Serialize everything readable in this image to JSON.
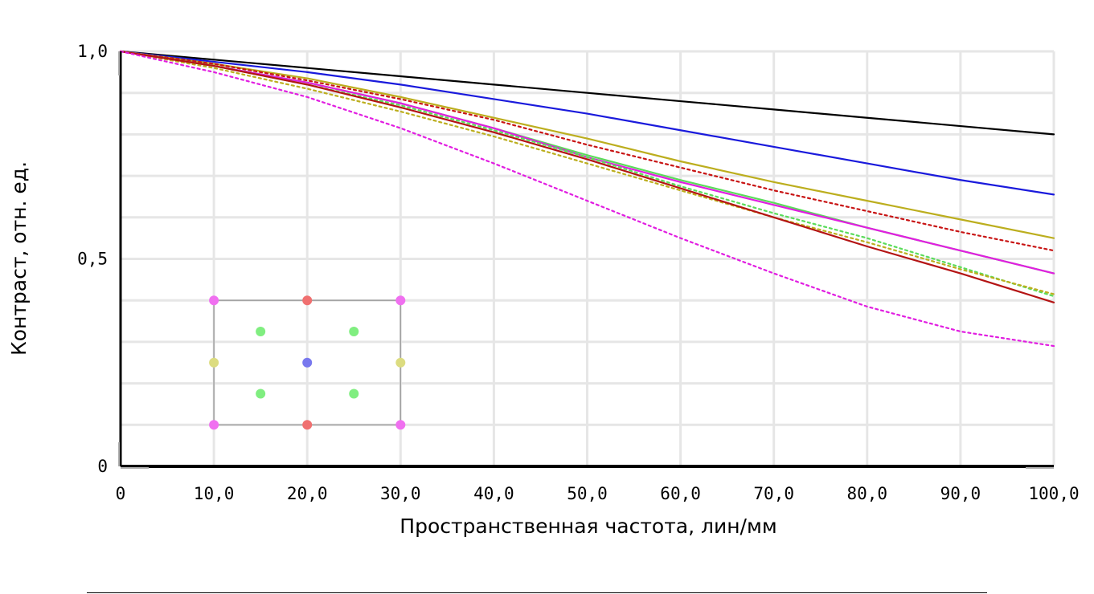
{
  "chart_data": {
    "type": "line",
    "xlabel": "Пространственная частота, лин/мм",
    "ylabel": "Контраст, отн. ед.",
    "xlim": [
      0,
      100
    ],
    "ylim": [
      0,
      1
    ],
    "x_tick_labels": [
      "0",
      "10,0",
      "20,0",
      "30,0",
      "40,0",
      "50,0",
      "60,0",
      "70,0",
      "80,0",
      "90,0",
      "100,0"
    ],
    "y_tick_labels": [
      {
        "value": 0,
        "label": "0"
      },
      {
        "value": 0.5,
        "label": "0,5"
      },
      {
        "value": 1,
        "label": "1,0"
      }
    ],
    "grid": true,
    "x": [
      0,
      10,
      20,
      30,
      40,
      50,
      60,
      70,
      80,
      90,
      100
    ],
    "series": [
      {
        "color": "#000000",
        "dashed": false,
        "values": [
          1.0,
          0.98,
          0.96,
          0.94,
          0.92,
          0.9,
          0.88,
          0.86,
          0.84,
          0.82,
          0.8
        ]
      },
      {
        "color": "#1a1adc",
        "dashed": false,
        "values": [
          1.0,
          0.975,
          0.95,
          0.92,
          0.885,
          0.85,
          0.81,
          0.77,
          0.73,
          0.69,
          0.655
        ]
      },
      {
        "color": "#bcae1e",
        "dashed": false,
        "values": [
          1.0,
          0.97,
          0.935,
          0.89,
          0.84,
          0.79,
          0.735,
          0.685,
          0.64,
          0.595,
          0.55
        ]
      },
      {
        "color": "#c81414",
        "dashed": true,
        "values": [
          1.0,
          0.97,
          0.93,
          0.885,
          0.835,
          0.775,
          0.72,
          0.665,
          0.615,
          0.565,
          0.52
        ]
      },
      {
        "color": "#5adc5a",
        "dashed": false,
        "values": [
          1.0,
          0.965,
          0.925,
          0.875,
          0.815,
          0.75,
          0.69,
          0.635,
          0.575,
          0.52,
          0.465
        ]
      },
      {
        "color": "#e11ee1",
        "dashed": false,
        "values": [
          1.0,
          0.965,
          0.925,
          0.875,
          0.815,
          0.745,
          0.685,
          0.63,
          0.575,
          0.52,
          0.465
        ]
      },
      {
        "color": "#5adc5a",
        "dashed": true,
        "values": [
          1.0,
          0.965,
          0.92,
          0.87,
          0.81,
          0.745,
          0.675,
          0.61,
          0.55,
          0.48,
          0.41
        ]
      },
      {
        "color": "#bcae1e",
        "dashed": true,
        "values": [
          1.0,
          0.96,
          0.91,
          0.855,
          0.795,
          0.73,
          0.665,
          0.6,
          0.54,
          0.475,
          0.415
        ]
      },
      {
        "color": "#b41414",
        "dashed": false,
        "values": [
          1.0,
          0.965,
          0.92,
          0.865,
          0.805,
          0.74,
          0.67,
          0.6,
          0.53,
          0.465,
          0.395
        ]
      },
      {
        "color": "#e11ee1",
        "dashed": true,
        "values": [
          1.0,
          0.95,
          0.89,
          0.815,
          0.73,
          0.64,
          0.55,
          0.465,
          0.385,
          0.325,
          0.29
        ]
      }
    ],
    "field_points_inset": [
      {
        "color": "#f070f0",
        "col": -1,
        "row": -1
      },
      {
        "color": "#f07070",
        "col": 0,
        "row": -1
      },
      {
        "color": "#f070f0",
        "col": 1,
        "row": -1
      },
      {
        "color": "#80ee80",
        "col": -0.5,
        "row": -0.5
      },
      {
        "color": "#80ee80",
        "col": 0.5,
        "row": -0.5
      },
      {
        "color": "#dcdc80",
        "col": -1,
        "row": 0
      },
      {
        "color": "#7878ee",
        "col": 0,
        "row": 0
      },
      {
        "color": "#dcdc80",
        "col": 1,
        "row": 0
      },
      {
        "color": "#80ee80",
        "col": -0.5,
        "row": 0.5
      },
      {
        "color": "#80ee80",
        "col": 0.5,
        "row": 0.5
      },
      {
        "color": "#f070f0",
        "col": -1,
        "row": 1
      },
      {
        "color": "#f07070",
        "col": 0,
        "row": 1
      },
      {
        "color": "#f070f0",
        "col": 1,
        "row": 1
      }
    ]
  }
}
